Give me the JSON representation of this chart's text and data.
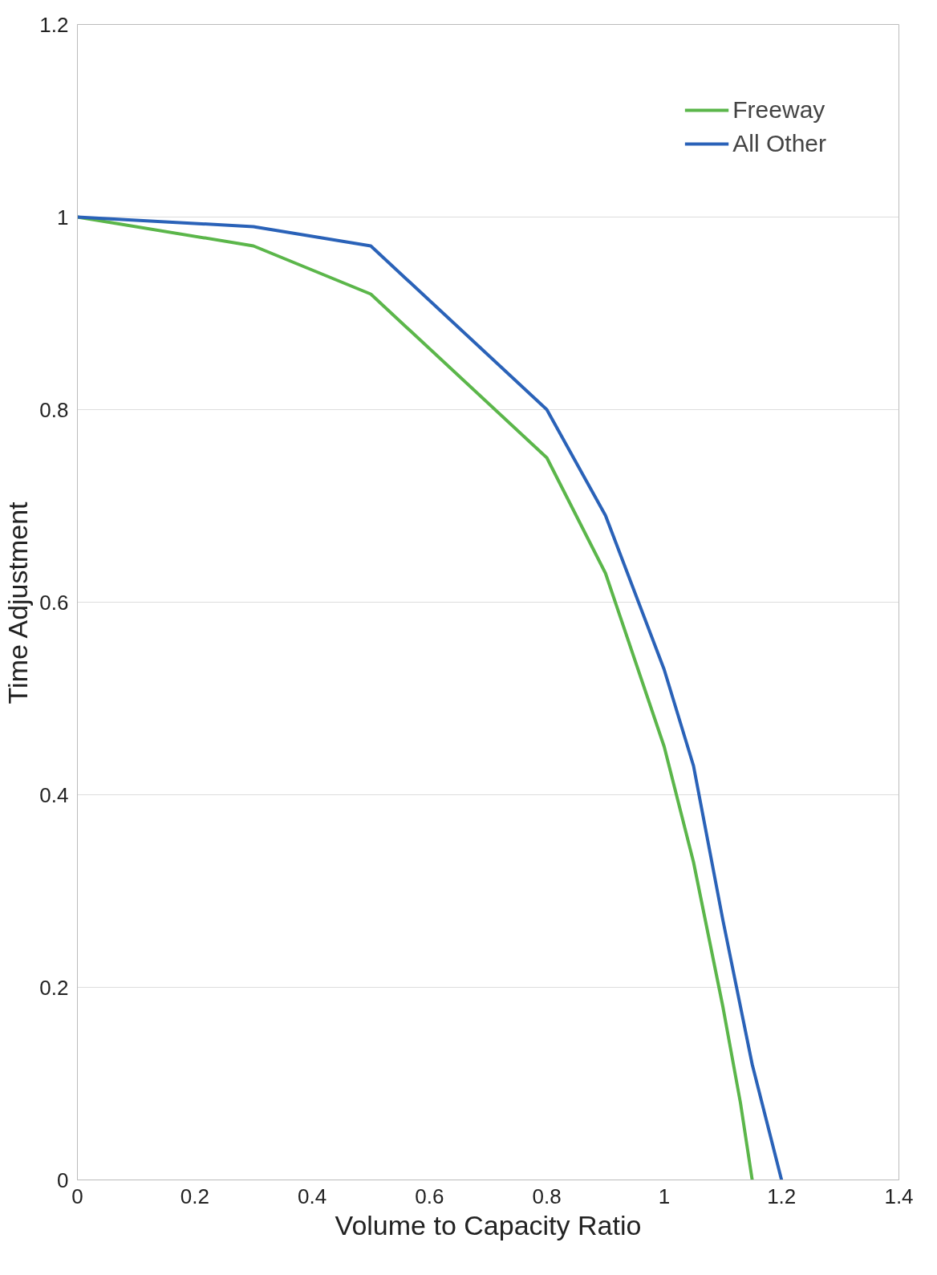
{
  "chart_data": {
    "type": "line",
    "xlabel": "Volume to Capacity Ratio",
    "ylabel": "Time Adjustment",
    "series": [
      {
        "name": "Freeway",
        "color": "#5bb64a",
        "x": [
          0,
          0.3,
          0.5,
          0.8,
          0.9,
          1.0,
          1.05,
          1.1,
          1.13,
          1.15
        ],
        "values": [
          1,
          0.97,
          0.92,
          0.75,
          0.63,
          0.45,
          0.33,
          0.18,
          0.08,
          0
        ]
      },
      {
        "name": "All Other",
        "color": "#2a62b8",
        "x": [
          0,
          0.3,
          0.5,
          0.8,
          0.9,
          1.0,
          1.05,
          1.1,
          1.15,
          1.2
        ],
        "values": [
          1,
          0.99,
          0.97,
          0.8,
          0.69,
          0.53,
          0.43,
          0.27,
          0.12,
          0
        ]
      }
    ],
    "xlim": [
      0,
      1.4
    ],
    "xticks": [
      0,
      0.2,
      0.4,
      0.6,
      0.8,
      1,
      1.2,
      1.4
    ],
    "ylim": [
      0,
      1.2
    ],
    "yticks": [
      0,
      0.2,
      0.4,
      0.6,
      0.8,
      1,
      1.2
    ],
    "grid": "y",
    "legend": "top right",
    "marker": "none",
    "line_style": "solid"
  }
}
